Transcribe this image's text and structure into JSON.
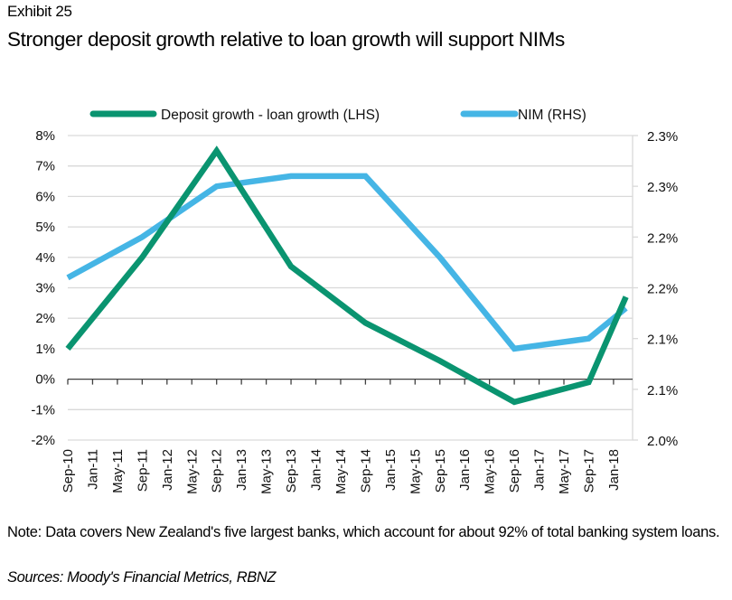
{
  "header": {
    "exhibit": "Exhibit 25",
    "title": "Stronger deposit growth relative to loan growth will support NIMs"
  },
  "footer": {
    "note": "Note: Data covers New Zealand's five largest banks, which account for about 92% of total banking system loans.",
    "sources": "Sources: Moody's Financial Metrics, RBNZ"
  },
  "colors": {
    "deposit_series": "#0a9470",
    "nim_series": "#45b5e5",
    "gridline": "#d9d9d9",
    "zero_axis": "#404040"
  },
  "chart_data": {
    "type": "line",
    "title": "Stronger deposit growth relative to loan growth will support NIMs",
    "xlabel": "",
    "ylabel_left": "",
    "ylabel_right": "",
    "legend_position": "top",
    "grid": true,
    "x_tick_labels": [
      "Sep-10",
      "Jan-11",
      "May-11",
      "Sep-11",
      "Jan-12",
      "May-12",
      "Sep-12",
      "Jan-13",
      "May-13",
      "Sep-13",
      "Jan-14",
      "May-14",
      "Sep-14",
      "Jan-15",
      "May-15",
      "Sep-15",
      "Jan-16",
      "May-16",
      "Sep-16",
      "Jan-17",
      "May-17",
      "Sep-17",
      "Jan-18"
    ],
    "x_tick_index": [
      0,
      1,
      2,
      3,
      4,
      5,
      6,
      7,
      8,
      9,
      10,
      11,
      12,
      13,
      14,
      15,
      16,
      17,
      18,
      19,
      20,
      21,
      22
    ],
    "y_left": {
      "range": [
        -2,
        8
      ],
      "ticks": [
        -2,
        -1,
        0,
        1,
        2,
        3,
        4,
        5,
        6,
        7,
        8
      ],
      "tick_labels": [
        "-2%",
        "-1%",
        "0%",
        "1%",
        "2%",
        "3%",
        "4%",
        "5%",
        "6%",
        "7%",
        "8%"
      ]
    },
    "y_right": {
      "range": [
        2.0,
        2.3
      ],
      "ticks": [
        2.0,
        2.05,
        2.1,
        2.15,
        2.2,
        2.25,
        2.3
      ],
      "tick_labels": [
        "2.0%",
        "2.1%",
        "2.1%",
        "2.2%",
        "2.2%",
        "2.3%",
        "2.3%"
      ]
    },
    "x_points": [
      "Sep-10",
      "Sep-11",
      "Sep-12",
      "Sep-13",
      "Sep-14",
      "Sep-15",
      "Sep-16",
      "Sep-17",
      "Mar-18"
    ],
    "x_point_index": [
      0,
      3,
      6,
      9,
      12,
      15,
      18,
      21,
      22.5
    ],
    "series": [
      {
        "name": "Deposit growth - loan growth (LHS)",
        "axis": "left",
        "unit": "%",
        "values": [
          1.0,
          4.0,
          7.5,
          3.7,
          1.85,
          0.6,
          -0.75,
          -0.1,
          2.7
        ]
      },
      {
        "name": "NIM (RHS)",
        "axis": "right",
        "unit": "%",
        "values": [
          2.16,
          2.2,
          2.25,
          2.26,
          2.26,
          2.18,
          2.09,
          2.1,
          2.13
        ]
      }
    ]
  }
}
